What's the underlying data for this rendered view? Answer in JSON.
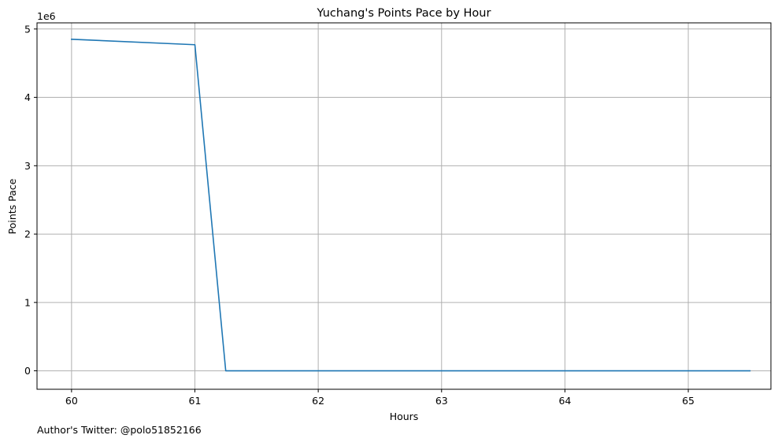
{
  "chart_data": {
    "type": "line",
    "title": "Yuchang's Points Pace by Hour",
    "xlabel": "Hours",
    "ylabel": "Points Pace",
    "y_offset_label": "1e6",
    "y_scale_factor": 1000000,
    "xlim": [
      59.72,
      65.67
    ],
    "ylim": [
      -270000,
      5090000
    ],
    "x_ticks": [
      60,
      61,
      62,
      63,
      64,
      65
    ],
    "x_tick_labels": [
      "60",
      "61",
      "62",
      "63",
      "64",
      "65"
    ],
    "y_ticks": [
      0,
      1000000,
      2000000,
      3000000,
      4000000,
      5000000
    ],
    "y_tick_labels": [
      "0",
      "1",
      "2",
      "3",
      "4",
      "5"
    ],
    "grid": true,
    "series": [
      {
        "color": "#1f77b4",
        "x": [
          60,
          61,
          61.25,
          61.5,
          62,
          62.5,
          63,
          63.5,
          64,
          64.5,
          65,
          65.5
        ],
        "y": [
          4850000,
          4770000,
          0,
          0,
          0,
          0,
          0,
          0,
          0,
          0,
          0,
          0
        ]
      }
    ]
  },
  "footnote": "Author's Twitter: @polo51852166"
}
